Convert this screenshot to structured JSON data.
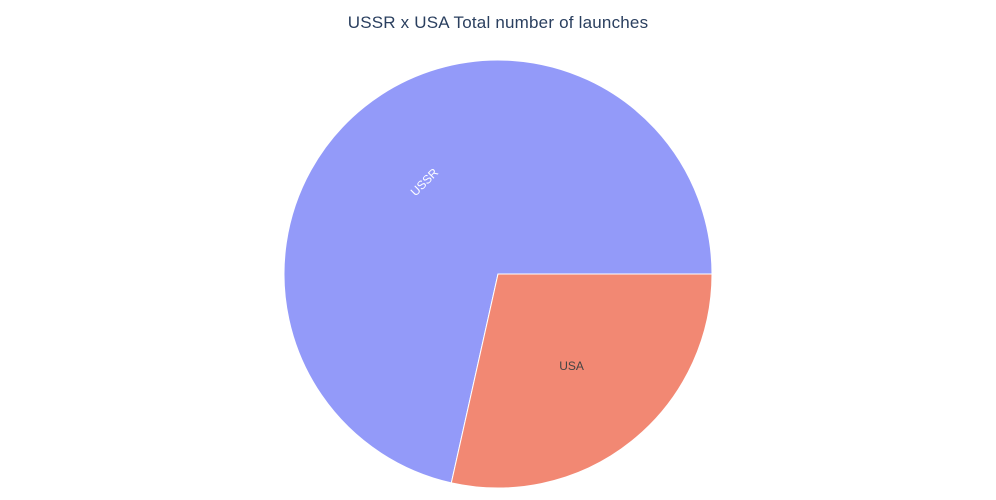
{
  "chart_data": {
    "type": "pie",
    "title": "USSR x USA Total number of launches",
    "labels": [
      "USSR",
      "USA"
    ],
    "values": [
      71.5,
      28.5
    ],
    "colors": [
      "#939af9",
      "#f28873"
    ],
    "label_colors": [
      "#ffffff",
      "#444444"
    ],
    "legend": false
  }
}
